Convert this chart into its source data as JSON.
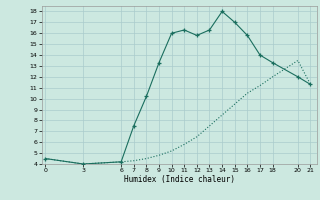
{
  "title": "",
  "xlabel": "Humidex (Indice chaleur)",
  "background_color": "#cce8e0",
  "line_color": "#1a6e5e",
  "grid_color": "#aacccc",
  "x_ticks": [
    0,
    3,
    6,
    7,
    8,
    9,
    10,
    11,
    12,
    13,
    14,
    15,
    16,
    17,
    18,
    20,
    21
  ],
  "y_ticks": [
    4,
    5,
    6,
    7,
    8,
    9,
    10,
    11,
    12,
    13,
    14,
    15,
    16,
    17,
    18
  ],
  "ylim": [
    4,
    18.5
  ],
  "xlim": [
    -0.3,
    21.5
  ],
  "series1_x": [
    0,
    3,
    6,
    7,
    8,
    9,
    10,
    11,
    12,
    13,
    14,
    15,
    16,
    17,
    18,
    20,
    21
  ],
  "series1_y": [
    4.5,
    4.0,
    4.2,
    7.5,
    10.2,
    13.3,
    16.0,
    16.3,
    15.8,
    16.3,
    18.0,
    17.0,
    15.8,
    14.0,
    13.3,
    12.0,
    11.3
  ],
  "series2_x": [
    0,
    3,
    6,
    7,
    8,
    9,
    10,
    11,
    12,
    13,
    14,
    15,
    16,
    17,
    18,
    20,
    21
  ],
  "series2_y": [
    4.5,
    4.0,
    4.2,
    4.3,
    4.5,
    4.8,
    5.2,
    5.8,
    6.5,
    7.5,
    8.5,
    9.5,
    10.5,
    11.2,
    12.0,
    13.5,
    11.3
  ]
}
